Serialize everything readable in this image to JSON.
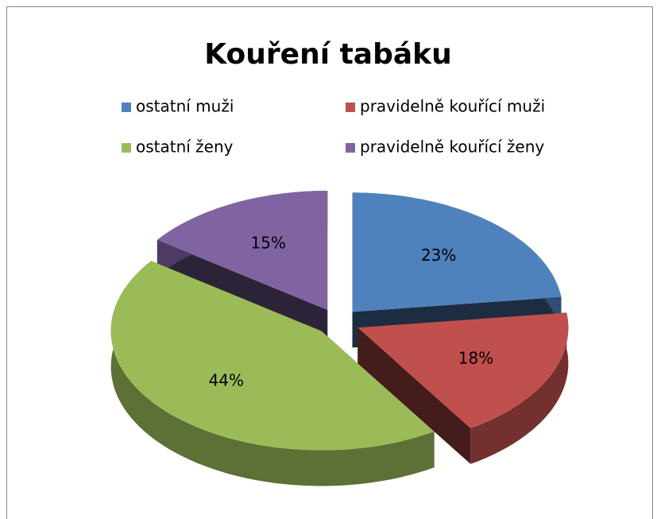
{
  "chart_data": {
    "type": "pie",
    "title": "Kouření tabáku",
    "categories": [
      "ostatní muži",
      "pravidelně kouřící muži",
      "ostatní ženy",
      "pravidelně kouřící ženy"
    ],
    "values": [
      23,
      18,
      44,
      15
    ],
    "value_labels": [
      "23%",
      "18%",
      "44%",
      "15%"
    ],
    "colors": [
      "#4f81bd",
      "#c0504d",
      "#9bbb59",
      "#8064a2"
    ],
    "legend": "top"
  }
}
